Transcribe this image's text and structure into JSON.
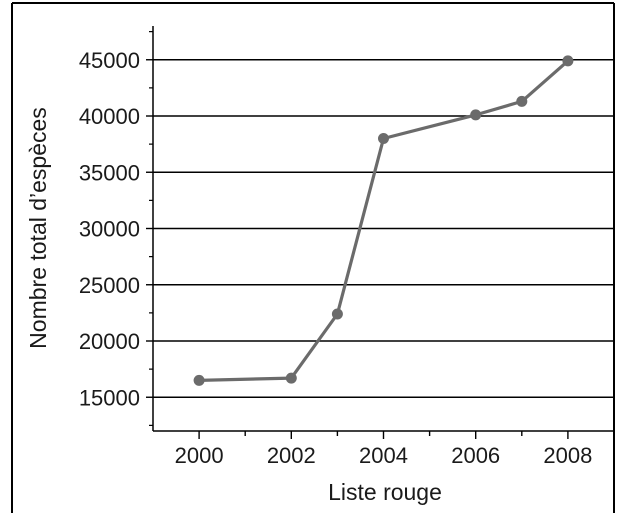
{
  "chart_data": {
    "type": "line",
    "xlabel": "Liste rouge",
    "ylabel": "Nombre total d’espèces",
    "xlim": [
      1999.0,
      2009.0
    ],
    "ylim": [
      12000,
      48000
    ],
    "x_ticks": [
      2000,
      2002,
      2004,
      2006,
      2008
    ],
    "x_tick_labels": [
      "2000",
      "2002",
      "2004",
      "2006",
      "2008"
    ],
    "y_ticks": [
      15000,
      20000,
      25000,
      30000,
      35000,
      40000,
      45000
    ],
    "y_tick_labels": [
      "15000",
      "20000",
      "25000",
      "30000",
      "35000",
      "40000",
      "45000"
    ],
    "grid": "horizontal",
    "series": [
      {
        "x": [
          2000,
          2002,
          2003,
          2004,
          2006,
          2007,
          2008
        ],
        "values": [
          16500,
          16700,
          22400,
          38000,
          40100,
          41300,
          44900
        ]
      }
    ],
    "colors": {
      "line": "#6b6b6b",
      "marker": "#6b6b6b",
      "axis": "#000000",
      "grid": "#000000"
    }
  }
}
